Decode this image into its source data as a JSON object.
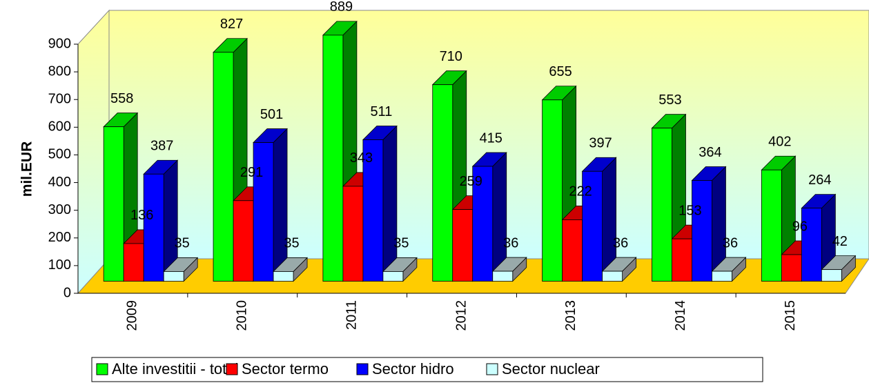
{
  "chart_data": {
    "type": "bar3d",
    "y_label": "mil.EUR",
    "categories": [
      "2009",
      "2010",
      "2011",
      "2012",
      "2013",
      "2014",
      "2015"
    ],
    "series": [
      {
        "name": "Alte investitii - total",
        "color": "#00ff00",
        "values": [
          558,
          827,
          889,
          710,
          655,
          553,
          402
        ]
      },
      {
        "name": "Sector termo",
        "color": "#ff0000",
        "values": [
          136,
          291,
          343,
          259,
          222,
          153,
          96
        ]
      },
      {
        "name": "Sector hidro",
        "color": "#0000ff",
        "values": [
          387,
          501,
          511,
          415,
          397,
          364,
          264
        ]
      },
      {
        "name": "Sector nuclear",
        "color": "#ccffff",
        "values": [
          35,
          35,
          35,
          36,
          36,
          36,
          42
        ]
      }
    ],
    "ylim": [
      0,
      900
    ],
    "yticks": [
      0,
      100,
      200,
      300,
      400,
      500,
      600,
      700,
      800,
      900
    ],
    "grid": false,
    "legend": "bottom"
  }
}
